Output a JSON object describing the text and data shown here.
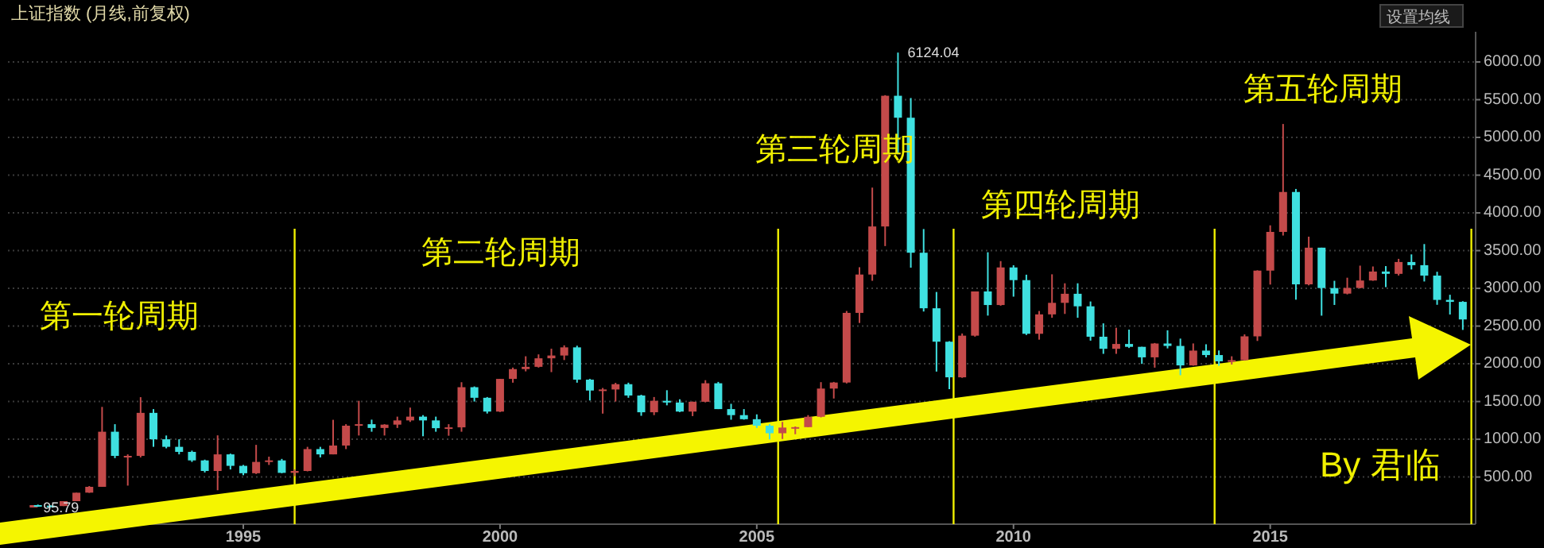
{
  "chart_data": {
    "type": "candlestick",
    "title": "上证指数 (月线,前复权)",
    "x": [
      "1990-12",
      "1991-01",
      "1991-04",
      "1991-07",
      "1991-10",
      "1992-01",
      "1992-04",
      "1992-07",
      "1992-10",
      "1993-01",
      "1993-04",
      "1993-07",
      "1993-10",
      "1994-01",
      "1994-04",
      "1994-07",
      "1994-10",
      "1995-01",
      "1995-04",
      "1995-07",
      "1995-10",
      "1996-01",
      "1996-04",
      "1996-07",
      "1996-10",
      "1997-01",
      "1997-04",
      "1997-07",
      "1997-10",
      "1998-01",
      "1998-04",
      "1998-07",
      "1998-10",
      "1999-01",
      "1999-04",
      "1999-07",
      "1999-10",
      "2000-01",
      "2000-04",
      "2000-07",
      "2000-10",
      "2001-01",
      "2001-04",
      "2001-07",
      "2001-10",
      "2002-01",
      "2002-04",
      "2002-07",
      "2002-10",
      "2003-01",
      "2003-04",
      "2003-07",
      "2003-10",
      "2004-01",
      "2004-04",
      "2004-07",
      "2004-10",
      "2005-01",
      "2005-04",
      "2005-07",
      "2005-10",
      "2006-01",
      "2006-04",
      "2006-07",
      "2006-10",
      "2007-01",
      "2007-04",
      "2007-07",
      "2007-10",
      "2008-01",
      "2008-04",
      "2008-07",
      "2008-10",
      "2009-01",
      "2009-04",
      "2009-07",
      "2009-10",
      "2010-01",
      "2010-04",
      "2010-07",
      "2010-10",
      "2011-01",
      "2011-04",
      "2011-07",
      "2011-10",
      "2012-01",
      "2012-04",
      "2012-07",
      "2012-10",
      "2013-01",
      "2013-04",
      "2013-07",
      "2013-10",
      "2014-01",
      "2014-04",
      "2014-07",
      "2014-10",
      "2015-01",
      "2015-04",
      "2015-07",
      "2015-10",
      "2016-01",
      "2016-04",
      "2016-07",
      "2016-10",
      "2017-01",
      "2017-04",
      "2017-07",
      "2017-10",
      "2018-01",
      "2018-04",
      "2018-07",
      "2018-10"
    ],
    "ohlc": [
      [
        95.79,
        127.61,
        95.79,
        127.61
      ],
      [
        128,
        135,
        105,
        120
      ],
      [
        120,
        125,
        105,
        115
      ],
      [
        115,
        180,
        115,
        180
      ],
      [
        180,
        292,
        180,
        292
      ],
      [
        293,
        380,
        290,
        370
      ],
      [
        370,
        1429,
        370,
        1100
      ],
      [
        1100,
        1200,
        750,
        780
      ],
      [
        780,
        800,
        386,
        780
      ],
      [
        780,
        1558,
        760,
        1350
      ],
      [
        1350,
        1400,
        900,
        1000
      ],
      [
        1000,
        1050,
        880,
        900
      ],
      [
        900,
        1000,
        800,
        833
      ],
      [
        833,
        850,
        700,
        720
      ],
      [
        720,
        730,
        560,
        580
      ],
      [
        580,
        1052,
        325,
        800
      ],
      [
        800,
        810,
        600,
        648
      ],
      [
        648,
        660,
        524,
        550
      ],
      [
        550,
        926,
        540,
        700
      ],
      [
        700,
        770,
        660,
        720
      ],
      [
        720,
        740,
        550,
        555
      ],
      [
        555,
        600,
        512,
        580
      ],
      [
        580,
        900,
        575,
        870
      ],
      [
        870,
        900,
        760,
        800
      ],
      [
        800,
        1258,
        800,
        917
      ],
      [
        917,
        1200,
        870,
        1180
      ],
      [
        1180,
        1510,
        1050,
        1200
      ],
      [
        1200,
        1260,
        1100,
        1150
      ],
      [
        1150,
        1200,
        1050,
        1194
      ],
      [
        1194,
        1300,
        1150,
        1250
      ],
      [
        1250,
        1420,
        1230,
        1300
      ],
      [
        1300,
        1320,
        1040,
        1250
      ],
      [
        1250,
        1300,
        1100,
        1147
      ],
      [
        1147,
        1200,
        1047,
        1158
      ],
      [
        1158,
        1756,
        1100,
        1690
      ],
      [
        1690,
        1700,
        1500,
        1550
      ],
      [
        1550,
        1560,
        1341,
        1367
      ],
      [
        1367,
        1800,
        1361,
        1800
      ],
      [
        1800,
        1950,
        1750,
        1930
      ],
      [
        1930,
        2100,
        1900,
        1960
      ],
      [
        1960,
        2125,
        1950,
        2073
      ],
      [
        2073,
        2200,
        1890,
        2110
      ],
      [
        2110,
        2245,
        2050,
        2218
      ],
      [
        2218,
        2240,
        1750,
        1790
      ],
      [
        1790,
        1800,
        1514,
        1646
      ],
      [
        1646,
        1680,
        1340,
        1660
      ],
      [
        1660,
        1748,
        1500,
        1730
      ],
      [
        1730,
        1750,
        1550,
        1580
      ],
      [
        1580,
        1590,
        1311,
        1358
      ],
      [
        1358,
        1560,
        1320,
        1510
      ],
      [
        1510,
        1650,
        1450,
        1487
      ],
      [
        1487,
        1530,
        1360,
        1367
      ],
      [
        1367,
        1500,
        1307,
        1497
      ],
      [
        1497,
        1783,
        1490,
        1742
      ],
      [
        1742,
        1760,
        1400,
        1400
      ],
      [
        1400,
        1470,
        1259,
        1320
      ],
      [
        1320,
        1400,
        1260,
        1266
      ],
      [
        1266,
        1330,
        1150,
        1180
      ],
      [
        1180,
        1200,
        998,
        1080
      ],
      [
        1080,
        1230,
        1004,
        1155
      ],
      [
        1155,
        1170,
        1067,
        1161
      ],
      [
        1161,
        1320,
        1160,
        1298
      ],
      [
        1298,
        1757,
        1290,
        1672
      ],
      [
        1672,
        1760,
        1540,
        1752
      ],
      [
        1752,
        2700,
        1740,
        2675
      ],
      [
        2675,
        3280,
        2541,
        3183
      ],
      [
        3183,
        4335,
        3100,
        3820
      ],
      [
        3820,
        5560,
        3560,
        5552
      ],
      [
        5552,
        6124.04,
        4778,
        5261
      ],
      [
        5261,
        5522,
        3274,
        3472
      ],
      [
        3472,
        3786,
        2693,
        2736
      ],
      [
        2736,
        2952,
        1897,
        2293
      ],
      [
        2293,
        2300,
        1664,
        1821
      ],
      [
        1821,
        2402,
        1814,
        2373
      ],
      [
        2373,
        2959,
        2360,
        2959
      ],
      [
        2959,
        3478,
        2639,
        2779
      ],
      [
        2779,
        3361,
        2770,
        3277
      ],
      [
        3277,
        3306,
        2890,
        3109
      ],
      [
        3109,
        3181,
        2382,
        2398
      ],
      [
        2398,
        2700,
        2320,
        2655
      ],
      [
        2655,
        3186,
        2610,
        2808
      ],
      [
        2808,
        3067,
        2661,
        2928
      ],
      [
        2928,
        3067,
        2610,
        2762
      ],
      [
        2762,
        2826,
        2307,
        2359
      ],
      [
        2359,
        2536,
        2132,
        2199
      ],
      [
        2199,
        2478,
        2132,
        2263
      ],
      [
        2263,
        2453,
        2210,
        2225
      ],
      [
        2225,
        2226,
        1999,
        2086
      ],
      [
        2086,
        2276,
        1949,
        2269
      ],
      [
        2269,
        2444,
        2204,
        2237
      ],
      [
        2237,
        2334,
        1849,
        1979
      ],
      [
        1979,
        2270,
        1975,
        2175
      ],
      [
        2175,
        2259,
        2085,
        2116
      ],
      [
        2116,
        2177,
        1974,
        2033
      ],
      [
        2033,
        2100,
        1991,
        2048
      ],
      [
        2048,
        2390,
        2042,
        2364
      ],
      [
        2364,
        3239,
        2303,
        3235
      ],
      [
        3235,
        3835,
        3050,
        3748
      ],
      [
        3748,
        5178,
        3700,
        4277
      ],
      [
        4277,
        4317,
        2850,
        3053
      ],
      [
        3053,
        3685,
        3040,
        3539
      ],
      [
        3539,
        3539,
        2638,
        3004
      ],
      [
        3004,
        3100,
        2780,
        2930
      ],
      [
        2930,
        3141,
        2920,
        3005
      ],
      [
        3005,
        3301,
        3000,
        3104
      ],
      [
        3104,
        3290,
        3100,
        3223
      ],
      [
        3223,
        3295,
        3016,
        3192
      ],
      [
        3192,
        3391,
        3170,
        3349
      ],
      [
        3349,
        3450,
        3250,
        3307
      ],
      [
        3307,
        3587,
        3091,
        3169
      ],
      [
        3169,
        3220,
        2782,
        2847
      ],
      [
        2847,
        2915,
        2653,
        2821
      ],
      [
        2821,
        2830,
        2449,
        2588
      ]
    ],
    "colors": [
      "#c44a4a",
      "#3fe0e0",
      "#3fe0e0",
      "#c44a4a",
      "#c44a4a",
      "#c44a4a",
      "#c44a4a",
      "#3fe0e0",
      "#c44a4a",
      "#c44a4a",
      "#3fe0e0",
      "#3fe0e0",
      "#3fe0e0",
      "#3fe0e0",
      "#3fe0e0",
      "#c44a4a",
      "#3fe0e0",
      "#3fe0e0",
      "#c44a4a",
      "#c44a4a",
      "#3fe0e0",
      "#c44a4a",
      "#c44a4a",
      "#3fe0e0",
      "#c44a4a",
      "#c44a4a",
      "#c44a4a",
      "#3fe0e0",
      "#c44a4a",
      "#c44a4a",
      "#c44a4a",
      "#3fe0e0",
      "#3fe0e0",
      "#c44a4a",
      "#c44a4a",
      "#3fe0e0",
      "#3fe0e0",
      "#c44a4a",
      "#c44a4a",
      "#c44a4a",
      "#c44a4a",
      "#c44a4a",
      "#c44a4a",
      "#3fe0e0",
      "#3fe0e0",
      "#c44a4a",
      "#c44a4a",
      "#3fe0e0",
      "#3fe0e0",
      "#c44a4a",
      "#3fe0e0",
      "#3fe0e0",
      "#c44a4a",
      "#c44a4a",
      "#3fe0e0",
      "#3fe0e0",
      "#3fe0e0",
      "#3fe0e0",
      "#3fe0e0",
      "#c44a4a",
      "#c44a4a",
      "#c44a4a",
      "#c44a4a",
      "#c44a4a",
      "#c44a4a",
      "#c44a4a",
      "#c44a4a",
      "#c44a4a",
      "#3fe0e0",
      "#3fe0e0",
      "#3fe0e0",
      "#3fe0e0",
      "#3fe0e0",
      "#c44a4a",
      "#c44a4a",
      "#3fe0e0",
      "#c44a4a",
      "#3fe0e0",
      "#3fe0e0",
      "#c44a4a",
      "#c44a4a",
      "#c44a4a",
      "#3fe0e0",
      "#3fe0e0",
      "#3fe0e0",
      "#c44a4a",
      "#3fe0e0",
      "#3fe0e0",
      "#c44a4a",
      "#3fe0e0",
      "#3fe0e0",
      "#c44a4a",
      "#3fe0e0",
      "#3fe0e0",
      "#c44a4a",
      "#c44a4a",
      "#c44a4a",
      "#c44a4a",
      "#c44a4a",
      "#3fe0e0",
      "#c44a4a",
      "#3fe0e0",
      "#3fe0e0",
      "#c44a4a",
      "#c44a4a",
      "#c44a4a",
      "#3fe0e0",
      "#c44a4a",
      "#3fe0e0",
      "#3fe0e0",
      "#3fe0e0",
      "#3fe0e0",
      "#3fe0e0"
    ],
    "xlim": [
      "1990-06",
      "2019-01"
    ],
    "xticks": [
      "1995",
      "2000",
      "2005",
      "2010",
      "2015"
    ],
    "ylim": [
      -125,
      6400
    ],
    "yticks": [
      {
        "value": 500,
        "label": "500.00"
      },
      {
        "value": 1000,
        "label": "1000.00"
      },
      {
        "value": 1500,
        "label": "1500.00"
      },
      {
        "value": 2000,
        "label": "2000.00"
      },
      {
        "value": 2500,
        "label": "2500.00"
      },
      {
        "value": 3000,
        "label": "3000.00"
      },
      {
        "value": 3500,
        "label": "3500.00"
      },
      {
        "value": 4000,
        "label": "4000.00"
      },
      {
        "value": 4500,
        "label": "4500.00"
      },
      {
        "value": 5000,
        "label": "5000.00"
      },
      {
        "value": 5500,
        "label": "5500.00"
      },
      {
        "value": 6000,
        "label": "6000.00"
      }
    ],
    "grid": "y",
    "ref_lines": [
      {
        "axis": "x",
        "value": "1996-01",
        "color": "#f0f000"
      },
      {
        "axis": "x",
        "value": "2005-06",
        "color": "#f0f000"
      },
      {
        "axis": "x",
        "value": "2008-11",
        "color": "#f0f000"
      },
      {
        "axis": "x",
        "value": "2013-12",
        "color": "#f0f000"
      },
      {
        "axis": "x",
        "value": "2018-12",
        "color": "#f0f000"
      }
    ],
    "annotations": [
      "第一轮周期",
      "第二轮周期",
      "第三轮周期",
      "第四轮周期",
      "第五轮周期",
      {
        "text": "6124.04",
        "x": "2007-10",
        "y": 6124.04
      },
      {
        "text": "95.79",
        "x": "1990-12",
        "y": 95.79
      },
      "设置均线",
      "By 君临"
    ]
  }
}
